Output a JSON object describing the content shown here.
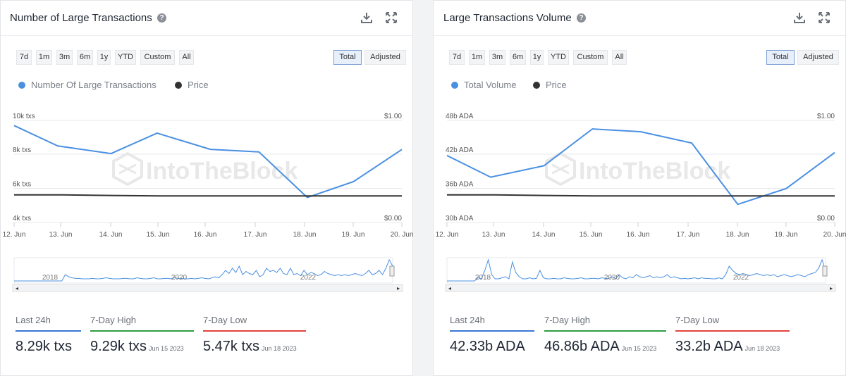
{
  "colors": {
    "series": "#4a90e2",
    "price": "#333333",
    "high": "#2e9e44",
    "low": "#e0443a",
    "last": "#3a78d6"
  },
  "range_buttons": [
    "7d",
    "1m",
    "3m",
    "6m",
    "1y",
    "YTD",
    "Custom",
    "All"
  ],
  "mode_buttons": [
    "Total",
    "Adjusted"
  ],
  "watermark": "IntoTheBlock",
  "cards": [
    {
      "title": "Number of Large Transactions",
      "legend": [
        "Number Of Large Transactions",
        "Price"
      ],
      "stats": [
        {
          "label": "Last 24h",
          "value": "8.29k txs",
          "date": ""
        },
        {
          "label": "7-Day High",
          "value": "9.29k txs",
          "date": "Jun 15 2023"
        },
        {
          "label": "7-Day Low",
          "value": "5.47k txs",
          "date": "Jun 18 2023"
        }
      ]
    },
    {
      "title": "Large Transactions Volume",
      "legend": [
        "Total Volume",
        "Price"
      ],
      "stats": [
        {
          "label": "Last 24h",
          "value": "42.33b ADA",
          "date": ""
        },
        {
          "label": "7-Day High",
          "value": "46.86b ADA",
          "date": "Jun 15 2023"
        },
        {
          "label": "7-Day Low",
          "value": "33.2b ADA",
          "date": "Jun 18 2023"
        }
      ]
    }
  ],
  "chart_data": [
    {
      "type": "line",
      "title": "Number of Large Transactions",
      "x": [
        "12. Jun",
        "13. Jun",
        "14. Jun",
        "15. Jun",
        "16. Jun",
        "17. Jun",
        "18. Jun",
        "19. Jun",
        "20. Jun"
      ],
      "series": [
        {
          "name": "Number Of Large Transactions",
          "axis": "left",
          "x": [
            12,
            12.9,
            14,
            14.95,
            16.05,
            17.05,
            18.05,
            19.0,
            20.0
          ],
          "values": [
            9700,
            8500,
            8050,
            9250,
            8300,
            8150,
            5470,
            6400,
            8290
          ]
        },
        {
          "name": "Price",
          "axis": "right",
          "x": [
            12,
            13,
            14,
            15,
            16,
            17,
            18,
            19,
            20
          ],
          "values": [
            0.27,
            0.27,
            0.265,
            0.26,
            0.26,
            0.26,
            0.26,
            0.26,
            0.26
          ]
        }
      ],
      "y_left_ticks": [
        "10k txs",
        "8k txs",
        "6k txs",
        "4k txs"
      ],
      "y_left_lim": [
        4000,
        10000
      ],
      "y_right_ticks": [
        "$1.00",
        "$0.00"
      ],
      "y_right_lim": [
        0,
        1
      ],
      "navigator_labels": [
        "2018",
        "2020",
        "2022"
      ],
      "navigator_values": [
        0,
        0,
        0,
        0,
        0,
        0,
        0,
        0,
        0,
        0,
        0,
        0,
        0,
        0,
        0,
        0.3,
        0.2,
        0.15,
        0.12,
        0.12,
        0.1,
        0.1,
        0.1,
        0.12,
        0.1,
        0.1,
        0.12,
        0.15,
        0.12,
        0.1,
        0.1,
        0.1,
        0.12,
        0.12,
        0.1,
        0.1,
        0.15,
        0.12,
        0.1,
        0.1,
        0.12,
        0.15,
        0.1,
        0.1,
        0.12,
        0.12,
        0.1,
        0.15,
        0.12,
        0.12,
        0.1,
        0.1,
        0.12,
        0.1,
        0.12,
        0.15,
        0.12,
        0.1,
        0.15,
        0.2,
        0.15,
        0.3,
        0.5,
        0.35,
        0.6,
        0.4,
        0.7,
        0.3,
        0.45,
        0.35,
        0.3,
        0.5,
        0.2,
        0.3,
        0.6,
        0.45,
        0.5,
        0.4,
        0.6,
        0.35,
        0.3,
        0.6,
        0.3,
        0.35,
        0.25,
        0.5,
        0.3,
        0.4,
        0.35,
        0.25,
        0.3,
        0.45,
        0.35,
        0.3,
        0.25,
        0.3,
        0.25,
        0.3,
        0.25,
        0.3,
        0.35,
        0.3,
        0.25,
        0.35,
        0.5,
        0.3,
        0.35,
        0.5,
        0.3,
        0.6,
        1.0,
        0.7
      ]
    },
    {
      "type": "line",
      "title": "Large Transactions Volume",
      "x": [
        "12. Jun",
        "13. Jun",
        "14. Jun",
        "15. Jun",
        "16. Jun",
        "17. Jun",
        "18. Jun",
        "19. Jun",
        "20. Jun"
      ],
      "series": [
        {
          "name": "Total Volume",
          "axis": "left",
          "x": [
            12,
            12.9,
            14,
            15,
            16.0,
            17.05,
            18.0,
            19.0,
            20.0
          ],
          "values": [
            41800,
            38000,
            40000,
            46500,
            46000,
            44000,
            33200,
            36000,
            42330
          ]
        },
        {
          "name": "Price",
          "axis": "right",
          "x": [
            12,
            13,
            14,
            15,
            16,
            17,
            18,
            19,
            20
          ],
          "values": [
            0.27,
            0.27,
            0.265,
            0.26,
            0.26,
            0.26,
            0.26,
            0.26,
            0.26
          ]
        }
      ],
      "y_left_ticks": [
        "48b ADA",
        "42b ADA",
        "36b ADA",
        "30b ADA"
      ],
      "y_left_lim": [
        30000,
        48000
      ],
      "y_right_ticks": [
        "$1.00",
        "$0.00"
      ],
      "y_right_lim": [
        0,
        1
      ],
      "navigator_labels": [
        "2018",
        "2020",
        "2022"
      ],
      "navigator_values": [
        0,
        0,
        0,
        0,
        0,
        0,
        0,
        0,
        0,
        0.15,
        0.1,
        0.5,
        1.0,
        0.3,
        0.1,
        0.1,
        0.15,
        0.2,
        0.1,
        0.9,
        0.4,
        0.2,
        0.1,
        0.1,
        0.15,
        0.1,
        0.12,
        0.5,
        0.15,
        0.1,
        0.1,
        0.12,
        0.1,
        0.1,
        0.15,
        0.12,
        0.1,
        0.1,
        0.12,
        0.15,
        0.1,
        0.1,
        0.12,
        0.12,
        0.1,
        0.15,
        0.12,
        0.12,
        0.2,
        0.1,
        0.3,
        0.15,
        0.1,
        0.2,
        0.15,
        0.3,
        0.2,
        0.15,
        0.2,
        0.25,
        0.15,
        0.2,
        0.15,
        0.2,
        0.3,
        0.15,
        0.2,
        0.15,
        0.1,
        0.12,
        0.1,
        0.12,
        0.15,
        0.1,
        0.15,
        0.12,
        0.12,
        0.1,
        0.1,
        0.15,
        0.1,
        0.3,
        0.7,
        0.5,
        0.35,
        0.3,
        0.35,
        0.3,
        0.25,
        0.3,
        0.35,
        0.3,
        0.25,
        0.3,
        0.25,
        0.3,
        0.2,
        0.25,
        0.3,
        0.25,
        0.2,
        0.25,
        0.3,
        0.25,
        0.2,
        0.3,
        0.35,
        0.4,
        0.6,
        1.0,
        0.5
      ]
    }
  ]
}
